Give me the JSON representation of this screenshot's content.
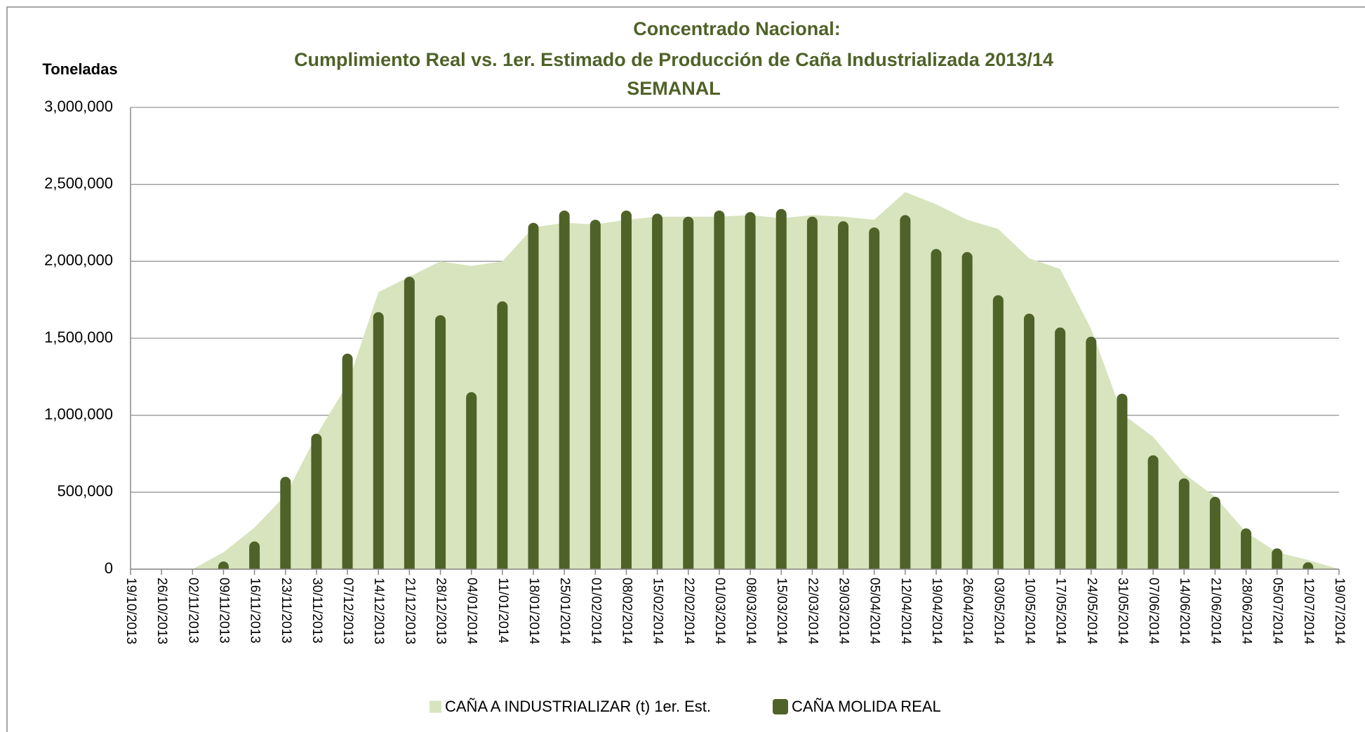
{
  "chart_data": {
    "type": "combo",
    "title": [
      "Concentrado Nacional:",
      "Cumplimiento Real vs. 1er. Estimado de Producción de Caña Industrializada 2013/14",
      "SEMANAL"
    ],
    "y_label": "Toneladas",
    "categories": [
      "19/10/2013",
      "26/10/2013",
      "02/11/2013",
      "09/11/2013",
      "16/11/2013",
      "23/11/2013",
      "30/11/2013",
      "07/12/2013",
      "14/12/2013",
      "21/12/2013",
      "28/12/2013",
      "04/01/2014",
      "11/01/2014",
      "18/01/2014",
      "25/01/2014",
      "01/02/2014",
      "08/02/2014",
      "15/02/2014",
      "22/02/2014",
      "01/03/2014",
      "08/03/2014",
      "15/03/2014",
      "22/03/2014",
      "29/03/2014",
      "05/04/2014",
      "12/04/2014",
      "19/04/2014",
      "26/04/2014",
      "03/05/2014",
      "10/05/2014",
      "17/05/2014",
      "24/05/2014",
      "31/05/2014",
      "07/06/2014",
      "14/06/2014",
      "21/06/2014",
      "28/06/2014",
      "05/07/2014",
      "12/07/2014",
      "19/07/2014"
    ],
    "series": [
      {
        "name": "CAÑA A INDUSTRIALIZAR (t) 1er. Est.",
        "kind": "area",
        "color": "#d7e4bd",
        "values": [
          0,
          0,
          0,
          110000,
          270000,
          480000,
          870000,
          1200000,
          1800000,
          1900000,
          2000000,
          1970000,
          2000000,
          2220000,
          2250000,
          2240000,
          2270000,
          2290000,
          2290000,
          2290000,
          2300000,
          2280000,
          2300000,
          2290000,
          2270000,
          2450000,
          2370000,
          2270000,
          2210000,
          2020000,
          1950000,
          1560000,
          1010000,
          860000,
          620000,
          470000,
          240000,
          110000,
          60000,
          0
        ]
      },
      {
        "name": "CAÑA MOLIDA REAL",
        "kind": "bar",
        "color": "#4f6228",
        "values": [
          null,
          null,
          null,
          50000,
          180000,
          600000,
          880000,
          1400000,
          1670000,
          1900000,
          1650000,
          1150000,
          1740000,
          2250000,
          2330000,
          2270000,
          2330000,
          2310000,
          2290000,
          2330000,
          2320000,
          2340000,
          2290000,
          2260000,
          2220000,
          2300000,
          2080000,
          2060000,
          1780000,
          1660000,
          1570000,
          1510000,
          1140000,
          740000,
          590000,
          470000,
          265000,
          135000,
          45000,
          null
        ]
      }
    ],
    "ylim": [
      0,
      3000000
    ],
    "yticks": [
      0,
      {
        "value": 500000,
        "label": "500,000"
      },
      {
        "value": 1000000,
        "label": "1,000,000"
      },
      {
        "value": 1500000,
        "label": "1,500,000"
      },
      {
        "value": 2000000,
        "label": "2,000,000"
      },
      {
        "value": 2500000,
        "label": "2,500,000"
      },
      {
        "value": 3000000,
        "label": "3,000,000"
      }
    ],
    "grid": true,
    "legend": "bottom"
  }
}
